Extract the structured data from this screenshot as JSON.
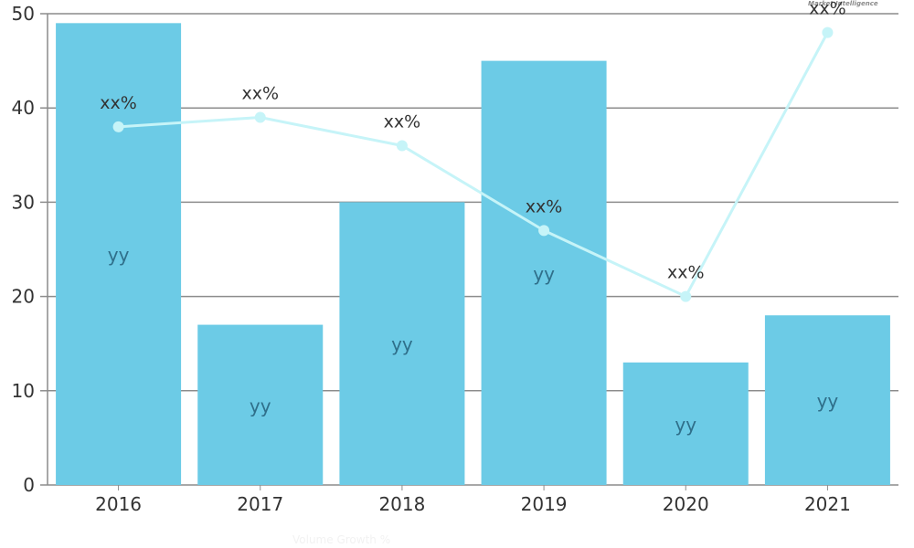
{
  "header": {
    "logo_text": "Market Intelligence"
  },
  "legend": {
    "items": [
      "Volume",
      "Growth %"
    ]
  },
  "colors": {
    "bar": "#6ccbe6",
    "line": "#c6f4f8",
    "marker": "#c6f4f8",
    "grid": "#8c8c8c",
    "axis": "#8c8c8c",
    "text": "#333333"
  },
  "chart_data": {
    "type": "bar",
    "title": "",
    "xlabel": "",
    "ylabel": "",
    "categories": [
      "2016",
      "2017",
      "2018",
      "2019",
      "2020",
      "2021"
    ],
    "ylim": [
      0,
      50
    ],
    "yticks": [
      0,
      10,
      20,
      30,
      40,
      50
    ],
    "grid": true,
    "series": [
      {
        "name": "Volume",
        "type": "bar",
        "values": [
          49,
          17,
          30,
          45,
          13,
          18
        ],
        "data_labels": [
          "yy",
          "yy",
          "yy",
          "yy",
          "yy",
          "yy"
        ]
      },
      {
        "name": "Growth %",
        "type": "line",
        "values": [
          38,
          39,
          36,
          27,
          20,
          48
        ],
        "data_labels": [
          "xx%",
          "xx%",
          "xx%",
          "xx%",
          "xx%",
          "xx%"
        ]
      }
    ]
  }
}
